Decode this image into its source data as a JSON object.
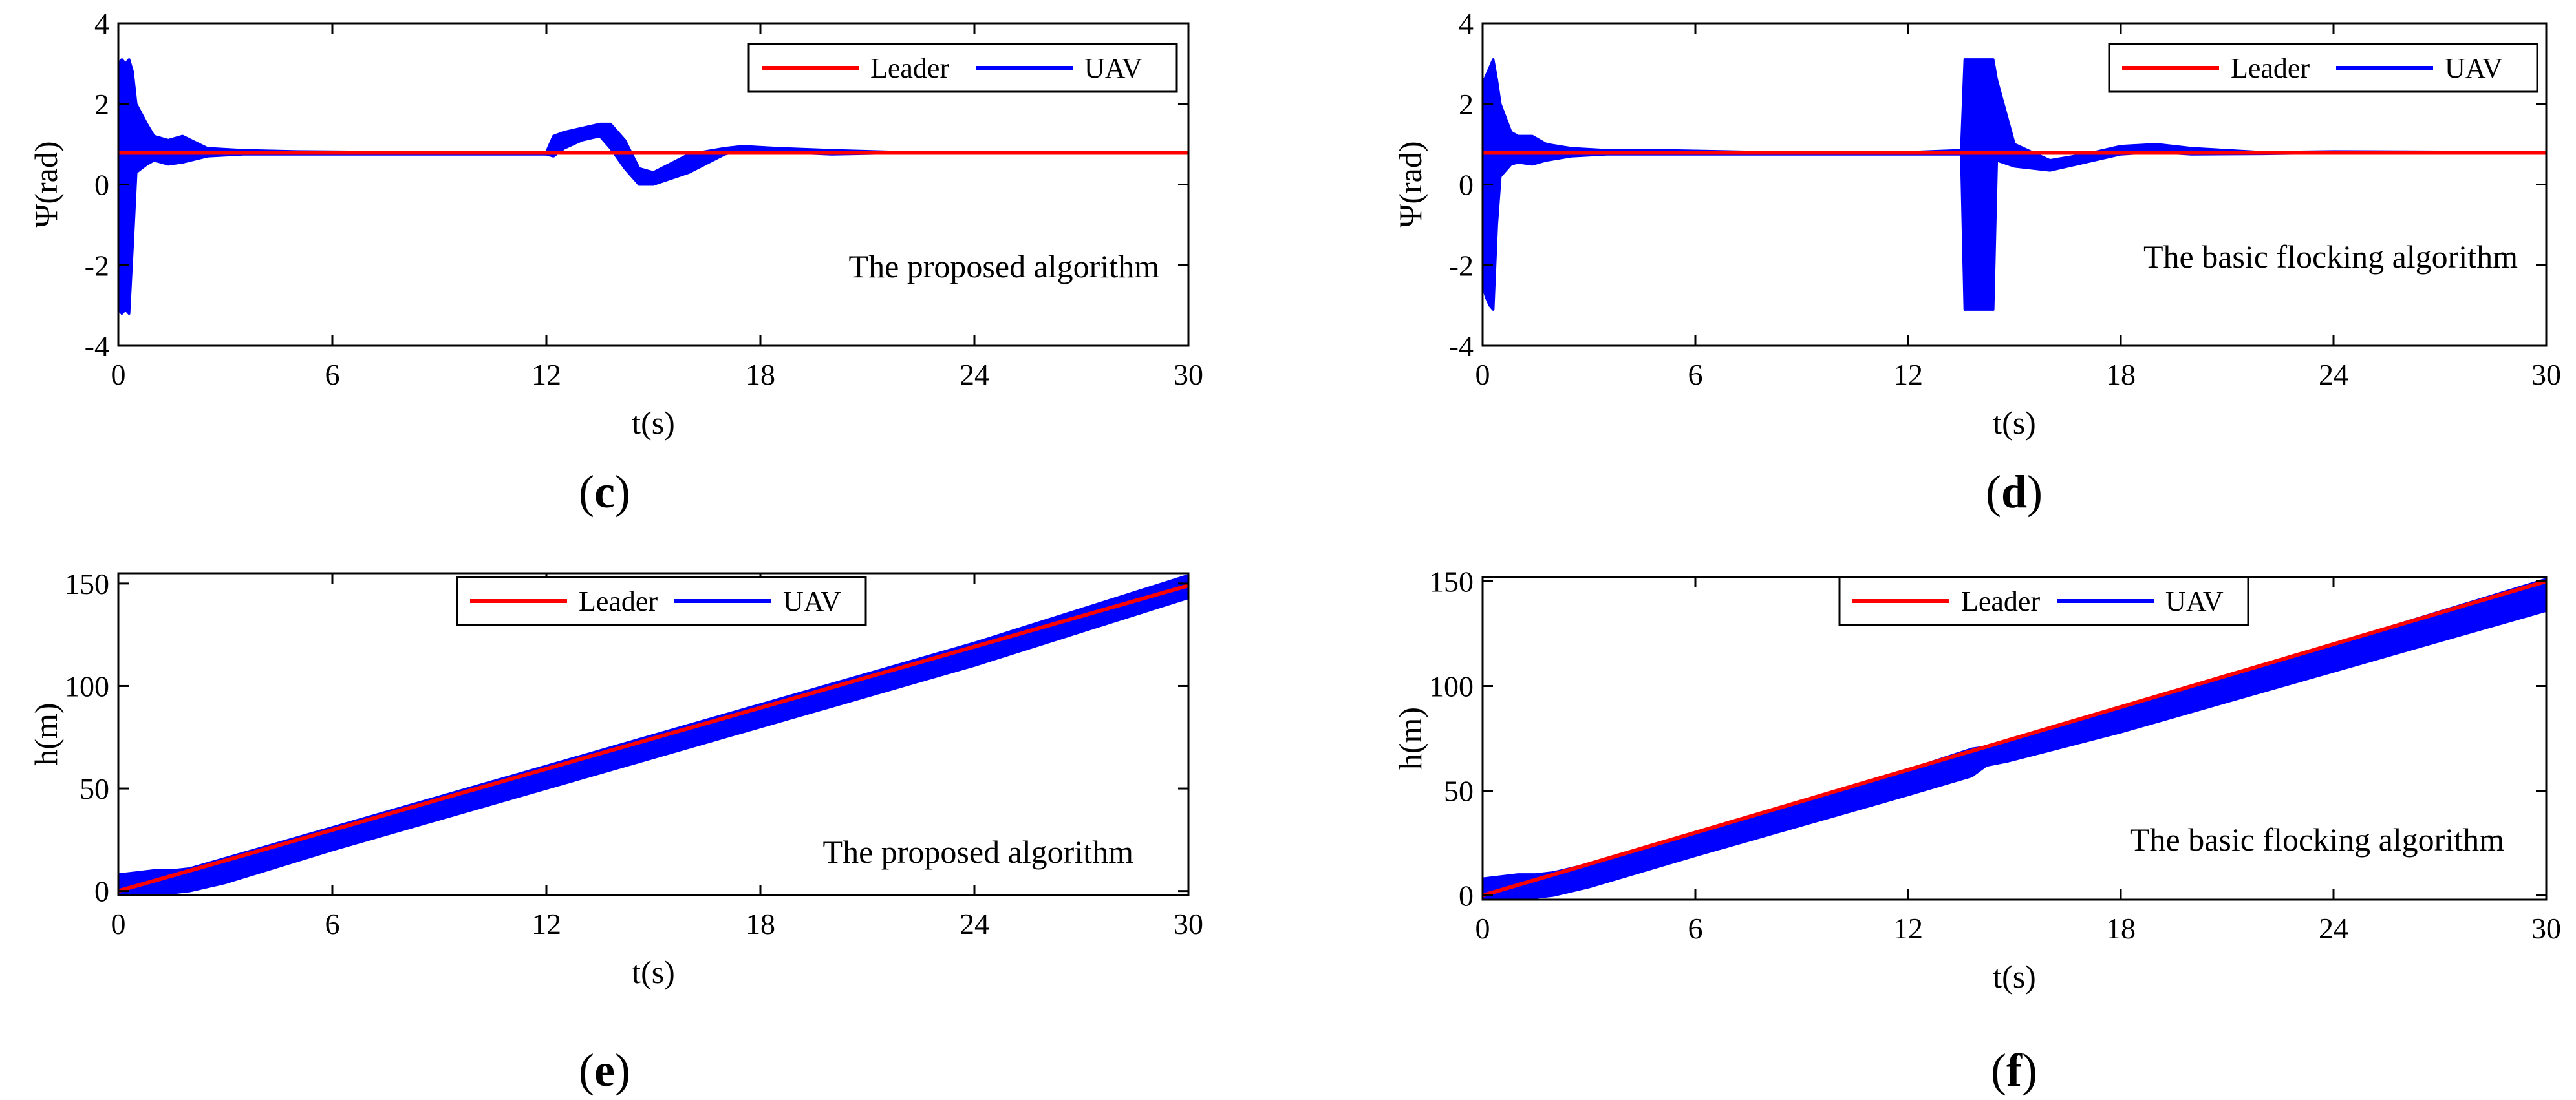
{
  "chart_data": [
    {
      "id": "c",
      "type": "line",
      "panel_label": "c",
      "xlabel": "t(s)",
      "ylabel": "Ψ(rad)",
      "xlim": [
        0,
        30
      ],
      "ylim": [
        -4,
        4
      ],
      "xticks": [
        0,
        6,
        12,
        18,
        24,
        30
      ],
      "yticks": [
        -4,
        -2,
        0,
        2,
        4
      ],
      "annotation": "The proposed algorithm",
      "legend": {
        "position": "top-right",
        "entries": [
          {
            "label": "Leader",
            "color": "#ff0000"
          },
          {
            "label": "UAV",
            "color": "#0000ff"
          }
        ]
      },
      "series": [
        {
          "name": "Leader",
          "color": "#ff0000",
          "constant": 0.785
        },
        {
          "name": "UAV",
          "color": "#0000ff",
          "band": {
            "t": [
              0,
              0.1,
              0.2,
              0.3,
              0.4,
              0.5,
              0.8,
              1.0,
              1.4,
              1.8,
              2.5,
              3.5,
              5,
              8,
              12,
              12.2,
              12.5,
              13,
              13.5,
              13.8,
              14.2,
              14.6,
              15,
              16,
              17,
              17.5,
              18.5,
              20,
              22,
              24,
              30
            ],
            "upper": [
              3.0,
              3.1,
              3.0,
              3.1,
              2.8,
              2.0,
              1.5,
              1.2,
              1.1,
              1.2,
              0.9,
              0.85,
              0.82,
              0.8,
              0.8,
              1.2,
              1.3,
              1.4,
              1.5,
              1.5,
              1.1,
              0.4,
              0.3,
              0.75,
              0.9,
              0.95,
              0.9,
              0.85,
              0.8,
              0.8,
              0.8
            ],
            "lower": [
              -3.1,
              -3.2,
              -3.1,
              -3.2,
              -1.5,
              0.3,
              0.5,
              0.6,
              0.5,
              0.55,
              0.7,
              0.75,
              0.75,
              0.75,
              0.75,
              0.7,
              0.9,
              1.1,
              1.2,
              0.9,
              0.4,
              0.0,
              0.0,
              0.3,
              0.75,
              0.85,
              0.8,
              0.75,
              0.78,
              0.78,
              0.78
            ]
          }
        }
      ]
    },
    {
      "id": "d",
      "type": "line",
      "panel_label": "d",
      "xlabel": "t(s)",
      "ylabel": "Ψ(rad)",
      "xlim": [
        0,
        30
      ],
      "ylim": [
        -4,
        4
      ],
      "xticks": [
        0,
        6,
        12,
        18,
        24,
        30
      ],
      "yticks": [
        -4,
        -2,
        0,
        2,
        4
      ],
      "annotation": "The basic flocking algorithm",
      "legend": {
        "position": "top-right",
        "entries": [
          {
            "label": "Leader",
            "color": "#ff0000"
          },
          {
            "label": "UAV",
            "color": "#0000ff"
          }
        ]
      },
      "series": [
        {
          "name": "Leader",
          "color": "#ff0000",
          "constant": 0.785
        },
        {
          "name": "UAV",
          "color": "#0000ff",
          "band": {
            "t": [
              0,
              0.1,
              0.2,
              0.3,
              0.4,
              0.5,
              0.8,
              1.0,
              1.4,
              1.8,
              2.5,
              3.5,
              5,
              8,
              12,
              13.5,
              13.6,
              13.8,
              14.2,
              14.4,
              14.5,
              15,
              16,
              17,
              18,
              19,
              20,
              22,
              24,
              30
            ],
            "upper": [
              2.5,
              2.7,
              2.9,
              3.1,
              2.6,
              2.0,
              1.3,
              1.2,
              1.2,
              1.0,
              0.9,
              0.85,
              0.85,
              0.8,
              0.8,
              0.85,
              3.1,
              3.1,
              3.1,
              3.1,
              2.6,
              1.0,
              0.6,
              0.75,
              0.95,
              1.0,
              0.9,
              0.8,
              0.82,
              0.8
            ],
            "lower": [
              -2.5,
              -2.8,
              -3.0,
              -3.1,
              -1.0,
              0.2,
              0.5,
              0.55,
              0.5,
              0.6,
              0.7,
              0.75,
              0.75,
              0.75,
              0.75,
              0.75,
              -3.1,
              -3.1,
              -3.1,
              -3.1,
              0.6,
              0.45,
              0.35,
              0.55,
              0.75,
              0.8,
              0.75,
              0.76,
              0.78,
              0.78
            ]
          }
        }
      ]
    },
    {
      "id": "e",
      "type": "line",
      "panel_label": "e",
      "xlabel": "t(s)",
      "ylabel": "h(m)",
      "xlim": [
        0,
        30
      ],
      "ylim": [
        -2,
        155
      ],
      "xticks": [
        0,
        6,
        12,
        18,
        24,
        30
      ],
      "yticks": [
        0,
        50,
        100,
        150
      ],
      "annotation": "The proposed algorithm",
      "legend": {
        "position": "top-center",
        "entries": [
          {
            "label": "Leader",
            "color": "#ff0000"
          },
          {
            "label": "UAV",
            "color": "#0000ff"
          }
        ]
      },
      "series": [
        {
          "name": "Leader",
          "color": "#ff0000",
          "line": {
            "t": [
              0,
              30
            ],
            "v": [
              0,
              149
            ]
          }
        },
        {
          "name": "UAV",
          "color": "#0000ff",
          "band": {
            "t": [
              0,
              0.5,
              1.0,
              1.5,
              2.0,
              3,
              6,
              12,
              18,
              24,
              30
            ],
            "upper": [
              8,
              9,
              10,
              10,
              11,
              16,
              31,
              61,
              91,
              121,
              154
            ],
            "lower": [
              -2,
              -2,
              -1,
              -1,
              0,
              4,
              20,
              50,
              80,
              110,
              143
            ]
          }
        }
      ]
    },
    {
      "id": "f",
      "type": "line",
      "panel_label": "f",
      "xlabel": "t(s)",
      "ylabel": "h(m)",
      "xlim": [
        0,
        30
      ],
      "ylim": [
        -2,
        152
      ],
      "xticks": [
        0,
        6,
        12,
        18,
        24,
        30
      ],
      "yticks": [
        0,
        50,
        100,
        150
      ],
      "annotation": "The basic flocking algorithm",
      "legend": {
        "position": "top-center",
        "entries": [
          {
            "label": "Leader",
            "color": "#ff0000"
          },
          {
            "label": "UAV",
            "color": "#0000ff"
          }
        ]
      },
      "series": [
        {
          "name": "Leader",
          "color": "#ff0000",
          "line": {
            "t": [
              0,
              30
            ],
            "v": [
              0,
              150
            ]
          }
        },
        {
          "name": "UAV",
          "color": "#0000ff",
          "band": {
            "t": [
              0,
              0.5,
              1.0,
              1.5,
              2.0,
              3,
              6,
              12,
              13.8,
              14.2,
              14.8,
              18,
              24,
              30
            ],
            "upper": [
              8,
              9,
              10,
              10,
              11,
              15,
              30,
              60,
              70,
              71,
              74,
              90,
              120,
              151
            ],
            "lower": [
              -2,
              -2,
              -1,
              -1,
              0,
              4,
              19,
              48,
              57,
              62,
              64,
              78,
              107,
              136
            ]
          }
        }
      ]
    }
  ]
}
